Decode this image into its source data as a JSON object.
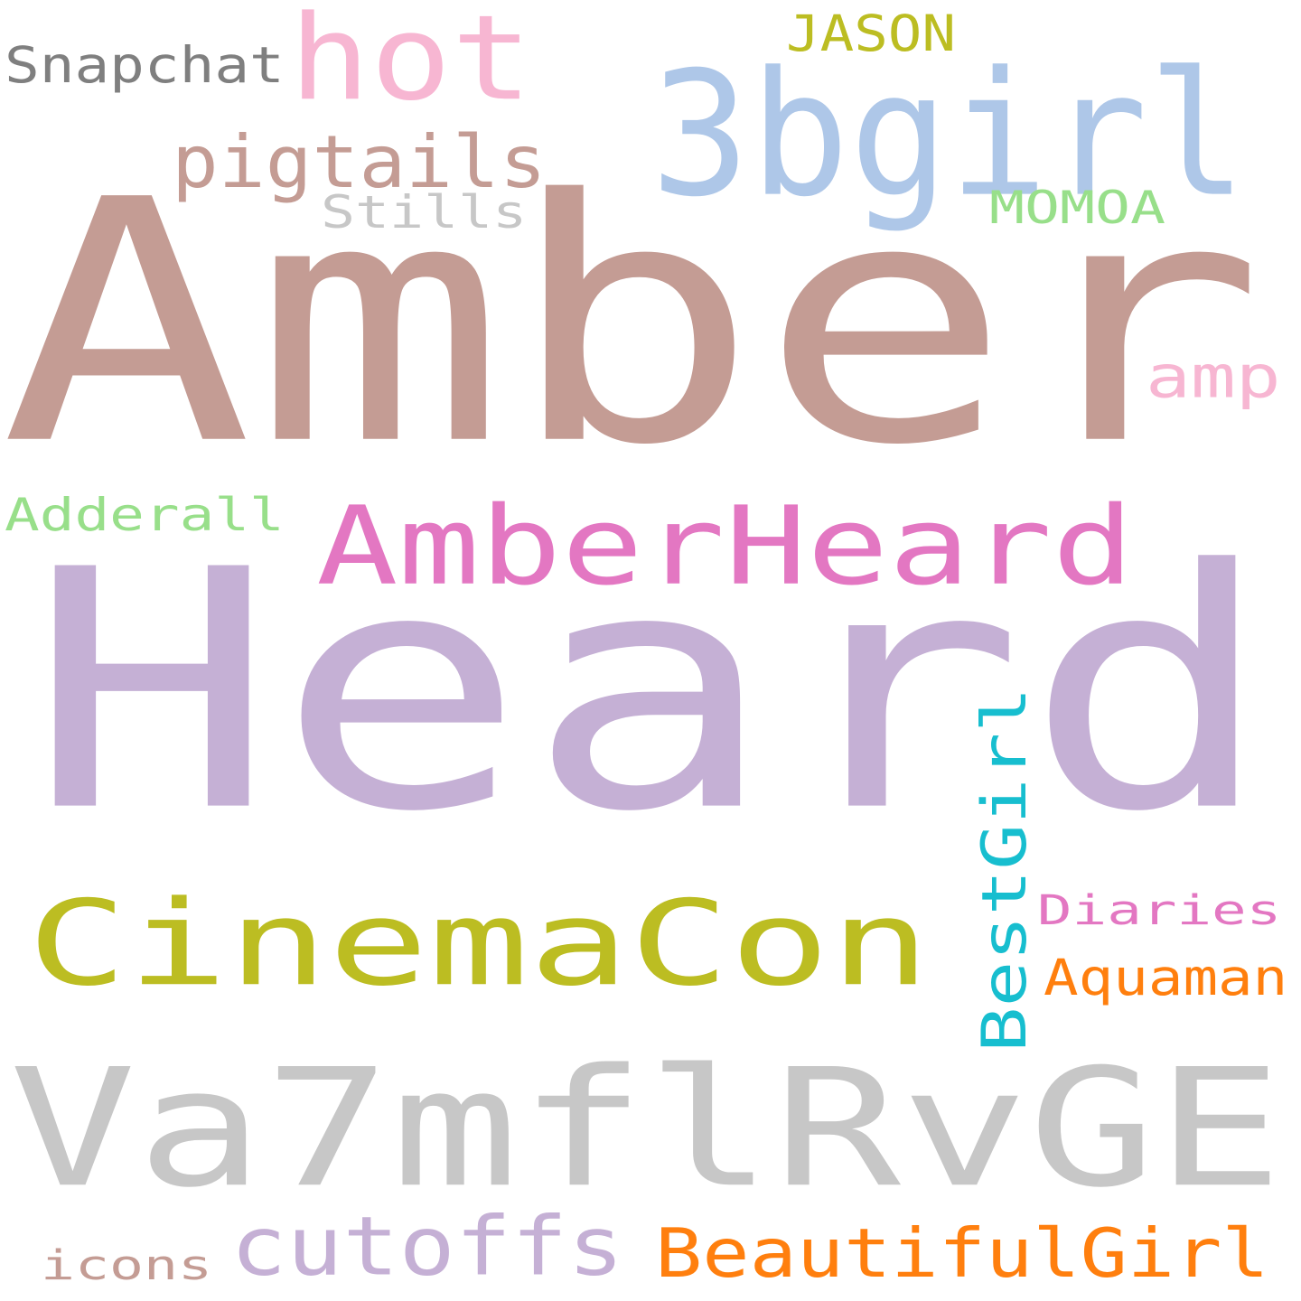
{
  "words": [
    {
      "id": "amber",
      "text": "Amber",
      "color": "#c49c94"
    },
    {
      "id": "heard",
      "text": "Heard",
      "color": "#c5b0d5"
    },
    {
      "id": "va7mflrvge",
      "text": "Va7mflRvGE",
      "color": "#c7c7c7"
    },
    {
      "id": "cinemacon",
      "text": "CinemaCon",
      "color": "#bcbd22"
    },
    {
      "id": "3bgirl",
      "text": "3bgirl",
      "color": "#aec7e8"
    },
    {
      "id": "amberheard",
      "text": "AmberHeard",
      "color": "#e377c2"
    },
    {
      "id": "hot",
      "text": "hot",
      "color": "#f7b6d2"
    },
    {
      "id": "bestgirl",
      "text": "BestGirl",
      "color": "#17becf",
      "vertical": true
    },
    {
      "id": "beautifulgirl",
      "text": "BeautifulGirl",
      "color": "#ff7f0e"
    },
    {
      "id": "cutoffs",
      "text": "cutoffs",
      "color": "#c5b0d5"
    },
    {
      "id": "pigtails",
      "text": "pigtails",
      "color": "#c49c94"
    },
    {
      "id": "snapchat",
      "text": "Snapchat",
      "color": "#7f7f7f"
    },
    {
      "id": "amp",
      "text": "amp",
      "color": "#f7b6d2"
    },
    {
      "id": "aquaman",
      "text": "Aquaman",
      "color": "#ff7f0e"
    },
    {
      "id": "diaries",
      "text": "Diaries",
      "color": "#e377c2"
    },
    {
      "id": "adderall",
      "text": "Adderall",
      "color": "#98df8a"
    },
    {
      "id": "stills",
      "text": "Stills",
      "color": "#c7c7c7"
    },
    {
      "id": "momoa",
      "text": "MOMOA",
      "color": "#98df8a"
    },
    {
      "id": "jason",
      "text": "JASON",
      "color": "#bcbd22"
    },
    {
      "id": "icons",
      "text": "icons",
      "color": "#c49c94"
    }
  ]
}
